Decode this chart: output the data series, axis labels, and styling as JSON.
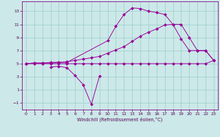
{
  "xlabel": "Windchill (Refroidissement éolien,°C)",
  "bg_color": "#cce8e8",
  "line_color": "#990099",
  "grid_color": "#99cccc",
  "xlim": [
    -0.5,
    23.5
  ],
  "ylim": [
    -2.0,
    14.5
  ],
  "xticks": [
    0,
    1,
    2,
    3,
    4,
    5,
    6,
    7,
    8,
    9,
    10,
    11,
    12,
    13,
    14,
    15,
    16,
    17,
    18,
    19,
    20,
    21,
    22,
    23
  ],
  "yticks": [
    -1,
    1,
    3,
    5,
    7,
    9,
    11,
    13
  ],
  "series1_x": [
    0,
    1,
    2,
    3,
    4,
    5,
    10,
    11,
    12,
    13,
    14,
    15,
    16,
    17,
    18,
    19,
    20,
    21,
    22,
    23
  ],
  "series1_y": [
    5.0,
    5.1,
    5.1,
    5.1,
    5.2,
    5.2,
    8.5,
    10.7,
    12.5,
    13.5,
    13.4,
    13.0,
    12.8,
    12.5,
    11.0,
    11.0,
    9.0,
    7.0,
    7.0,
    5.5
  ],
  "series2_x": [
    0,
    1,
    2,
    3,
    4,
    5,
    6,
    7,
    8,
    9,
    10,
    11,
    12,
    13,
    14,
    15,
    16,
    17,
    18,
    19,
    20,
    21,
    22,
    23
  ],
  "series2_y": [
    5.0,
    5.1,
    5.1,
    5.2,
    5.2,
    5.3,
    5.5,
    5.7,
    5.9,
    6.1,
    6.6,
    7.1,
    7.6,
    8.4,
    9.2,
    9.8,
    10.3,
    10.9,
    11.0,
    8.8,
    7.0,
    7.0,
    7.0,
    5.5
  ],
  "series3_x": [
    0,
    1,
    2,
    3,
    4,
    5,
    6,
    7,
    8,
    9,
    10,
    11,
    12,
    13,
    14,
    15,
    16,
    17,
    18,
    19,
    20,
    21,
    22,
    23
  ],
  "series3_y": [
    5.0,
    5.0,
    5.0,
    5.0,
    5.0,
    5.0,
    5.0,
    5.0,
    5.0,
    5.0,
    5.0,
    5.0,
    5.0,
    5.0,
    5.0,
    5.0,
    5.0,
    5.0,
    5.0,
    5.0,
    5.0,
    5.0,
    5.0,
    5.5
  ],
  "series4_x": [
    3,
    4,
    5,
    6,
    7,
    8,
    9
  ],
  "series4_y": [
    4.5,
    4.6,
    4.4,
    3.2,
    1.8,
    -1.2,
    3.1
  ]
}
